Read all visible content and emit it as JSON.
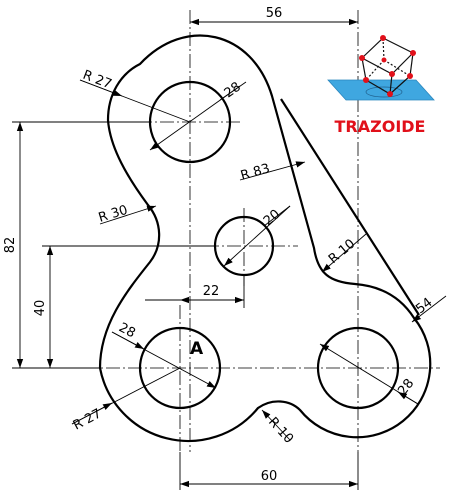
{
  "dimensions": {
    "top_width": "56",
    "bottom_width": "60",
    "left_height_total": "82",
    "left_height_mid": "40",
    "middle_offset": "22",
    "top_outer_radius": "R 27",
    "top_hole_dia": "28",
    "left_concave_radius": "R 30",
    "right_large_radius": "R 83",
    "middle_hole_dia": "20",
    "right_fillet_radius": "R 10",
    "right_outer_dia": "54",
    "bottom_left_hole_dia": "28",
    "bottom_left_outer_radius": "R 27",
    "bottom_fillet_radius": "R 10",
    "bottom_right_hole_dia": "28"
  },
  "labels": {
    "point_a": "A"
  },
  "logo": {
    "text": "TRAZOIDE",
    "text_color": "#e1101a",
    "plane_color": "#3fa7e0",
    "node_color": "#e1101a"
  }
}
